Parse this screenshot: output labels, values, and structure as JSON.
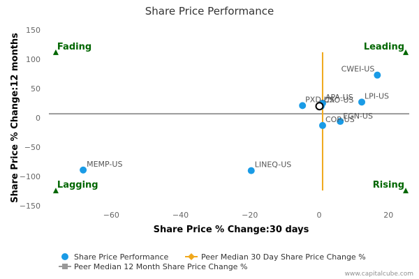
{
  "chart_data": {
    "type": "scatter",
    "title": "Share Price Performance",
    "xlabel": "Share Price % Change:30 days",
    "ylabel": "Share Price % Change:12 months",
    "xlim": [
      -78,
      26
    ],
    "ylim": [
      -150,
      150
    ],
    "x_ticks": [
      -60,
      -40,
      -20,
      0,
      20
    ],
    "y_ticks": [
      150,
      100,
      50,
      0,
      -50,
      -100,
      -150
    ],
    "grid": false,
    "legend_position": "bottom-left",
    "series": [
      {
        "name": "Share Price Performance",
        "color": "#1a9be6",
        "points": [
          {
            "label": "CWEI-US",
            "x": 16.8,
            "y": 73
          },
          {
            "label": "LPI-US",
            "x": 12.3,
            "y": 27
          },
          {
            "label": "APA-US",
            "x": 1.0,
            "y": 25
          },
          {
            "label": "PXD-US",
            "x": -4.8,
            "y": 21
          },
          {
            "label": "CXO-US",
            "x": 0.6,
            "y": 20
          },
          {
            "label": "EGN-US",
            "x": 6.1,
            "y": -6
          },
          {
            "label": "COP-US",
            "x": 1.0,
            "y": -13
          },
          {
            "label": "LINEQ-US",
            "x": -19.6,
            "y": -90
          },
          {
            "label": "MEMP-US",
            "x": -68.1,
            "y": -89
          }
        ]
      }
    ],
    "highlight_point": {
      "x": 0.1,
      "y": 20
    },
    "peer_median_30_day": 1.0,
    "peer_median_12_month": 7,
    "quadrant_labels": {
      "top_left": "Fading",
      "top_right": "Leading",
      "bottom_left": "Lagging",
      "bottom_right": "Rising"
    },
    "quadrant_color": "#006600",
    "legend": [
      {
        "label": "Share Price Performance",
        "color": "#1a9be6",
        "marker": "circle"
      },
      {
        "label": "Peer Median 30 Day Share Price Change %",
        "color": "#f0a81c",
        "marker": "diamond-line"
      },
      {
        "label": "Peer Median 12 Month Share Price Change %",
        "color": "#999999",
        "marker": "square-line"
      }
    ]
  },
  "credit": "www.capitalcube.com"
}
